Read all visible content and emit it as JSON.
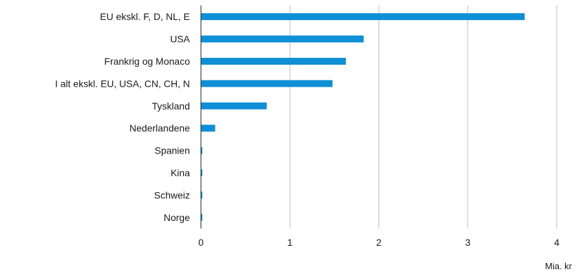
{
  "chart_data": {
    "type": "bar",
    "orientation": "horizontal",
    "categories": [
      "EU ekskl. F, D, NL, E",
      "USA",
      "Frankrig og Monaco",
      "I alt ekskl. EU, USA, CN, CH, N",
      "Tyskland",
      "Nederlandene",
      "Spanien",
      "Kina",
      "Schweiz",
      "Norge"
    ],
    "values": [
      3.64,
      1.83,
      1.63,
      1.48,
      0.74,
      0.16,
      0.015,
      0.015,
      0.015,
      0.015
    ],
    "title": "",
    "xlabel": "Mia. kr",
    "ylabel": "",
    "xlim": [
      0,
      4
    ],
    "xticks": [
      "0",
      "1",
      "2",
      "3",
      "4"
    ],
    "grid": "vertical",
    "legend": "none",
    "bar_color": "#0f8fd6",
    "grid_color": "#bfbfbf",
    "axis_color": "#1a1a1a"
  }
}
